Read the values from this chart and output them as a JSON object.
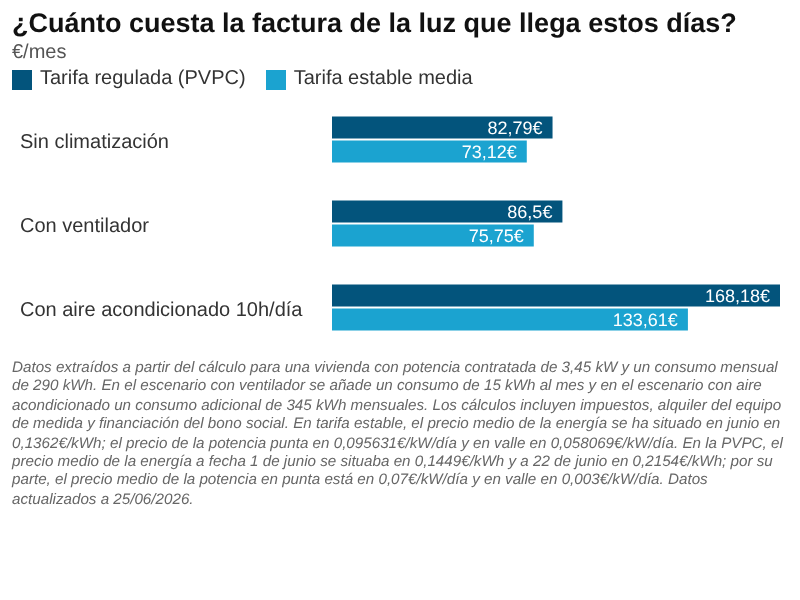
{
  "chart_data": {
    "type": "bar",
    "orientation": "horizontal",
    "title": "¿Cuánto cuesta la factura de la luz que llega estos días?",
    "subtitle": "€/mes",
    "categories": [
      "Sin climatización",
      "Con ventilador",
      "Con aire acondicionado 10h/día"
    ],
    "series": [
      {
        "name": "Tarifa regulada (PVPC)",
        "color": "#03547c",
        "values": [
          82.79,
          86.5,
          168.18
        ],
        "value_labels": [
          "82,79€",
          "86,5€",
          "168,18€"
        ]
      },
      {
        "name": "Tarifa estable media",
        "color": "#1ba3d0",
        "values": [
          73.12,
          75.75,
          133.61
        ],
        "value_labels": [
          "73,12€",
          "75,75€",
          "133,61€"
        ]
      }
    ],
    "legend": "top left",
    "annotations": [
      "Datos extraídos a partir del cálculo para una vivienda con potencia contratada de 3,45 kW y un consumo mensual de 290 kWh. En el escenario con ventilador se añade un consumo de 15 kWh al mes y en el escenario con aire acondicionado un consumo adicional de 345 kWh mensuales. Los cálculos incluyen impuestos, alquiler del equipo de medida y financiación del bono social. En tarifa estable, el precio medio de la energía se ha situado en junio en 0,1362€/kWh; el precio de la potencia punta en 0,095631€/kW/día y en valle en 0,058069€/kW/día. En la PVPC, el precio medio de la energía a fecha 1 de junio se situaba en 0,1449€/kWh y a 22 de junio en 0,2154€/kWh; por su parte, el precio medio de la potencia en punta está en 0,07€/kW/día y en valle en 0,003€/kW/día. Datos actualizados a 25/06/2026."
    ]
  }
}
